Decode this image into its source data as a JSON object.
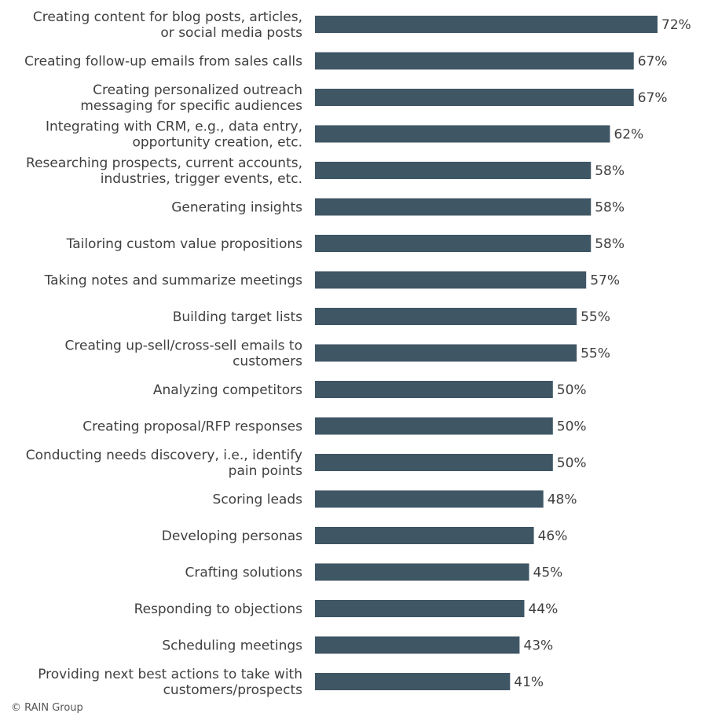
{
  "chart_data": {
    "type": "bar",
    "orientation": "horizontal",
    "categories": [
      [
        "Creating content for blog posts, articles,",
        "or social media posts"
      ],
      [
        "Creating follow-up emails from sales calls"
      ],
      [
        "Creating personalized outreach",
        "messaging for specific audiences"
      ],
      [
        "Integrating with CRM, e.g., data entry,",
        "opportunity creation, etc."
      ],
      [
        "Researching prospects, current accounts,",
        "industries, trigger events, etc."
      ],
      [
        "Generating insights"
      ],
      [
        "Tailoring custom value propositions"
      ],
      [
        "Taking notes and summarize meetings"
      ],
      [
        "Building target lists"
      ],
      [
        "Creating up-sell/cross-sell emails to",
        "customers"
      ],
      [
        "Analyzing competitors"
      ],
      [
        "Creating proposal/RFP responses"
      ],
      [
        "Conducting needs discovery, i.e., identify",
        "pain points"
      ],
      [
        "Scoring leads"
      ],
      [
        "Developing personas"
      ],
      [
        "Crafting solutions"
      ],
      [
        "Responding to objections"
      ],
      [
        "Scheduling meetings"
      ],
      [
        "Providing next best actions to take with",
        "customers/prospects"
      ]
    ],
    "values": [
      72,
      67,
      67,
      62,
      58,
      58,
      58,
      57,
      55,
      55,
      50,
      50,
      50,
      48,
      46,
      45,
      44,
      43,
      41
    ],
    "value_suffix": "%",
    "xlim": [
      0,
      100
    ],
    "grid": false,
    "bar_color": "#3f5665"
  },
  "footer": {
    "credit": "© RAIN Group"
  }
}
